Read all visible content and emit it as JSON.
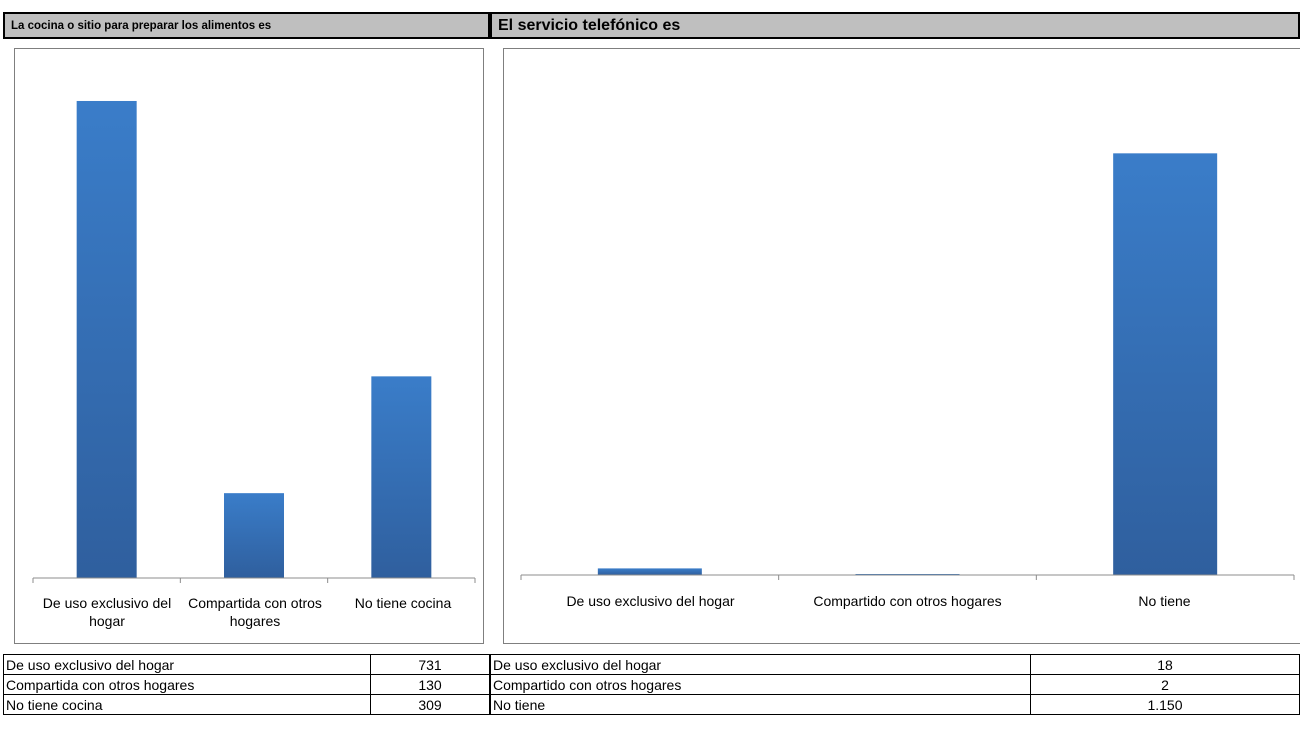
{
  "chart_data": [
    {
      "type": "bar",
      "title": "La cocina o sitio para preparar los alimentos es",
      "categories": [
        "De uso exclusivo del hogar",
        "Compartida con otros hogares",
        "No tiene cocina"
      ],
      "values": [
        731,
        130,
        309
      ],
      "value_labels": [
        "731",
        "130",
        "309"
      ],
      "color": "#3a7dc9",
      "ylim": [
        0,
        780
      ]
    },
    {
      "type": "bar",
      "title": "El servicio telefónico es",
      "categories": [
        "De uso exclusivo del hogar",
        "Compartido con otros hogares",
        "No tiene"
      ],
      "values": [
        18,
        2,
        1150
      ],
      "value_labels": [
        "18",
        "2",
        "1.150"
      ],
      "color": "#3a7dc9",
      "ylim": [
        0,
        1380
      ]
    }
  ]
}
